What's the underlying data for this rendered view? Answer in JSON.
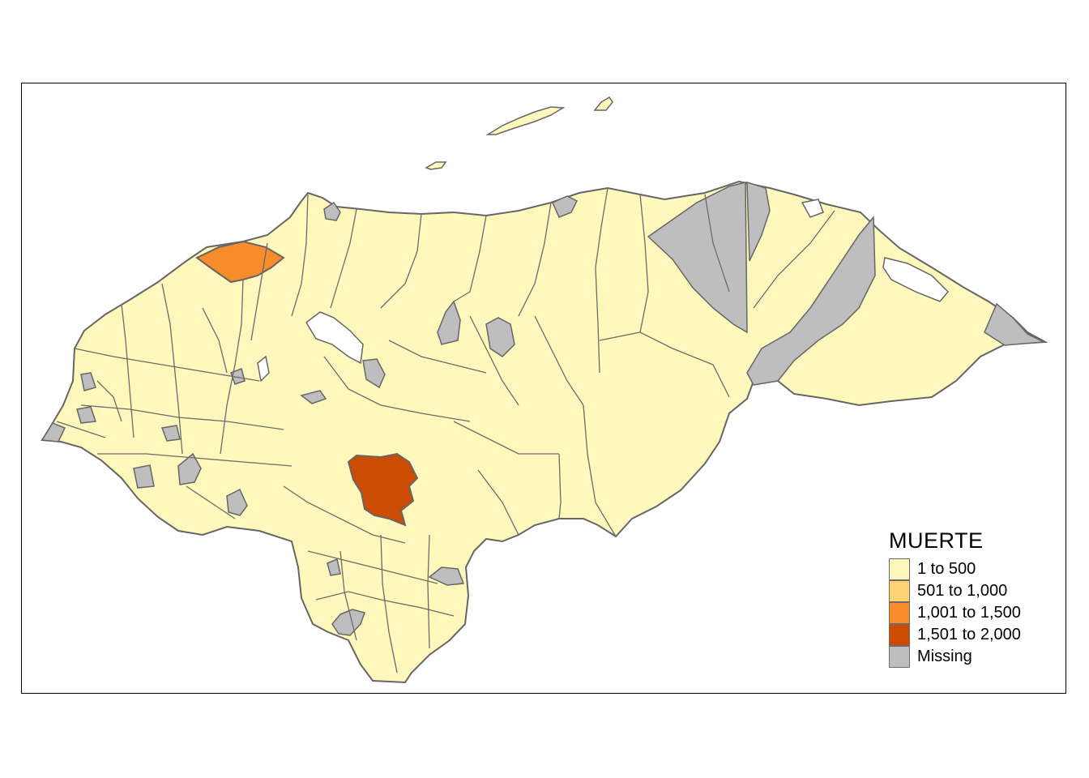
{
  "map": {
    "region": "Honduras",
    "layer": "municipalities",
    "colors": {
      "land_default": "#FFF7BC",
      "border": "#666666",
      "missing": "#BEBEBE",
      "lake": "#FFFFFF",
      "highlight_1001_1500": "#F68D2A",
      "highlight_1501_2000": "#CC4C02"
    }
  },
  "legend": {
    "title": "MUERTE",
    "items": [
      {
        "label": "1 to 500",
        "color": "#FFF7BC"
      },
      {
        "label": "501 to 1,000",
        "color": "#FED175"
      },
      {
        "label": "1,001 to 1,500",
        "color": "#F68D2A"
      },
      {
        "label": "1,501 to 2,000",
        "color": "#CC4C02"
      },
      {
        "label": "Missing",
        "color": "#BEBEBE"
      }
    ]
  }
}
